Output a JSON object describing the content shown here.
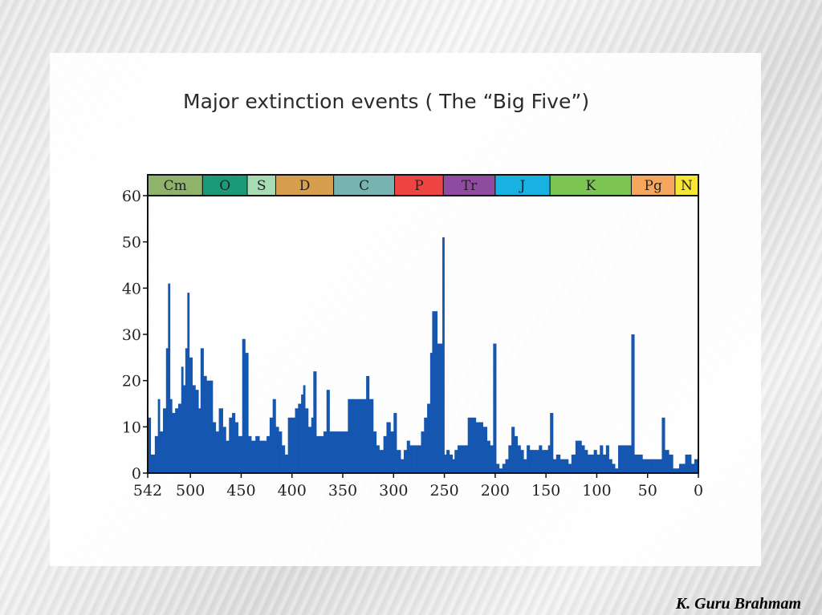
{
  "slide": {
    "title": "Major extinction events ( The “Big Five”)",
    "credit": "K. Guru Brahmam"
  },
  "colors": {
    "bar": "#1556b0",
    "axis": "#111111"
  },
  "chart_data": {
    "type": "bar",
    "title": "Major extinction events ( The “Big Five”)",
    "xlabel": "",
    "ylabel": "",
    "xlim": [
      542,
      0
    ],
    "ylim": [
      0,
      60
    ],
    "x_ticks": [
      {
        "value": 542,
        "label": "542"
      },
      {
        "value": 500,
        "label": "500"
      },
      {
        "value": 450,
        "label": "450"
      },
      {
        "value": 400,
        "label": "400"
      },
      {
        "value": 350,
        "label": "350"
      },
      {
        "value": 300,
        "label": "300"
      },
      {
        "value": 250,
        "label": "250"
      },
      {
        "value": 200,
        "label": "200"
      },
      {
        "value": 150,
        "label": "150"
      },
      {
        "value": 100,
        "label": "100"
      },
      {
        "value": 50,
        "label": "50"
      },
      {
        "value": 0,
        "label": "0"
      }
    ],
    "y_ticks": [
      {
        "value": 0,
        "label": "0"
      },
      {
        "value": 10,
        "label": "10"
      },
      {
        "value": 20,
        "label": "20"
      },
      {
        "value": 30,
        "label": "30"
      },
      {
        "value": 40,
        "label": "40"
      },
      {
        "value": 50,
        "label": "50"
      },
      {
        "value": 60,
        "label": "60"
      }
    ],
    "periods": [
      {
        "label": "Cm",
        "start": 542,
        "end": 488,
        "color": "#8fb36a"
      },
      {
        "label": "O",
        "start": 488,
        "end": 444,
        "color": "#1a9a78"
      },
      {
        "label": "S",
        "start": 444,
        "end": 416,
        "color": "#a8dcb4"
      },
      {
        "label": "D",
        "start": 416,
        "end": 359,
        "color": "#d79e4f"
      },
      {
        "label": "C",
        "start": 359,
        "end": 299,
        "color": "#77b3b0"
      },
      {
        "label": "P",
        "start": 299,
        "end": 251,
        "color": "#ef4444"
      },
      {
        "label": "Tr",
        "start": 251,
        "end": 200,
        "color": "#8e4ba0"
      },
      {
        "label": "J",
        "start": 200,
        "end": 146,
        "color": "#19b0e2"
      },
      {
        "label": "K",
        "start": 146,
        "end": 66,
        "color": "#7cc553"
      },
      {
        "label": "Pg",
        "start": 66,
        "end": 23,
        "color": "#f6a75d"
      },
      {
        "label": "N",
        "start": 23,
        "end": 0,
        "color": "#f7e733"
      }
    ],
    "series": [
      {
        "values": [
          [
            542,
            12
          ],
          [
            539,
            4
          ],
          [
            535,
            8
          ],
          [
            532,
            16
          ],
          [
            530,
            9
          ],
          [
            527,
            14
          ],
          [
            524,
            27
          ],
          [
            522,
            41
          ],
          [
            520,
            16
          ],
          [
            518,
            13
          ],
          [
            515,
            14
          ],
          [
            512,
            15
          ],
          [
            509,
            23
          ],
          [
            507,
            19
          ],
          [
            505,
            27
          ],
          [
            503,
            39
          ],
          [
            501,
            25
          ],
          [
            498,
            19
          ],
          [
            495,
            18
          ],
          [
            492,
            14
          ],
          [
            490,
            27
          ],
          [
            487,
            21
          ],
          [
            484,
            20
          ],
          [
            481,
            20
          ],
          [
            478,
            11
          ],
          [
            475,
            9
          ],
          [
            472,
            14
          ],
          [
            468,
            10
          ],
          [
            465,
            7
          ],
          [
            462,
            12
          ],
          [
            459,
            13
          ],
          [
            456,
            11
          ],
          [
            453,
            8
          ],
          [
            449,
            29
          ],
          [
            446,
            26
          ],
          [
            443,
            8
          ],
          [
            440,
            7
          ],
          [
            436,
            8
          ],
          [
            432,
            7
          ],
          [
            428,
            7
          ],
          [
            425,
            8
          ],
          [
            422,
            12
          ],
          [
            419,
            16
          ],
          [
            416,
            10
          ],
          [
            413,
            9
          ],
          [
            410,
            6
          ],
          [
            407,
            4
          ],
          [
            404,
            12
          ],
          [
            400,
            12
          ],
          [
            397,
            14
          ],
          [
            394,
            15
          ],
          [
            391,
            17
          ],
          [
            389,
            19
          ],
          [
            387,
            14
          ],
          [
            384,
            10
          ],
          [
            381,
            12
          ],
          [
            379,
            22
          ],
          [
            376,
            8
          ],
          [
            372,
            8
          ],
          [
            369,
            9
          ],
          [
            366,
            18
          ],
          [
            363,
            9
          ],
          [
            358,
            9
          ],
          [
            354,
            9
          ],
          [
            349,
            9
          ],
          [
            345,
            16
          ],
          [
            340,
            16
          ],
          [
            336,
            16
          ],
          [
            331,
            16
          ],
          [
            327,
            21
          ],
          [
            324,
            16
          ],
          [
            320,
            9
          ],
          [
            317,
            6
          ],
          [
            314,
            5
          ],
          [
            310,
            8
          ],
          [
            307,
            11
          ],
          [
            303,
            9
          ],
          [
            300,
            13
          ],
          [
            297,
            5
          ],
          [
            293,
            3
          ],
          [
            290,
            5
          ],
          [
            287,
            7
          ],
          [
            284,
            6
          ],
          [
            280,
            6
          ],
          [
            276,
            6
          ],
          [
            273,
            9
          ],
          [
            270,
            12
          ],
          [
            267,
            15
          ],
          [
            264,
            26
          ],
          [
            262,
            35
          ],
          [
            259,
            35
          ],
          [
            257,
            28
          ],
          [
            254,
            28
          ],
          [
            252,
            51
          ],
          [
            250,
            4
          ],
          [
            248,
            5
          ],
          [
            245,
            4
          ],
          [
            242,
            3
          ],
          [
            240,
            5
          ],
          [
            237,
            6
          ],
          [
            234,
            6
          ],
          [
            230,
            6
          ],
          [
            227,
            12
          ],
          [
            223,
            12
          ],
          [
            219,
            11
          ],
          [
            215,
            11
          ],
          [
            212,
            10
          ],
          [
            208,
            7
          ],
          [
            205,
            6
          ],
          [
            202,
            28
          ],
          [
            199,
            2
          ],
          [
            196,
            1
          ],
          [
            193,
            2
          ],
          [
            190,
            3
          ],
          [
            187,
            6
          ],
          [
            184,
            10
          ],
          [
            181,
            8
          ],
          [
            178,
            6
          ],
          [
            175,
            5
          ],
          [
            172,
            3
          ],
          [
            169,
            6
          ],
          [
            166,
            5
          ],
          [
            163,
            5
          ],
          [
            160,
            5
          ],
          [
            157,
            6
          ],
          [
            154,
            5
          ],
          [
            151,
            5
          ],
          [
            148,
            6
          ],
          [
            146,
            13
          ],
          [
            143,
            3
          ],
          [
            140,
            4
          ],
          [
            136,
            3
          ],
          [
            132,
            3
          ],
          [
            128,
            2
          ],
          [
            125,
            4
          ],
          [
            121,
            7
          ],
          [
            118,
            7
          ],
          [
            115,
            6
          ],
          [
            112,
            5
          ],
          [
            109,
            4
          ],
          [
            106,
            4
          ],
          [
            103,
            5
          ],
          [
            100,
            4
          ],
          [
            97,
            6
          ],
          [
            94,
            4
          ],
          [
            91,
            6
          ],
          [
            88,
            3
          ],
          [
            85,
            2
          ],
          [
            82,
            1
          ],
          [
            79,
            6
          ],
          [
            75,
            6
          ],
          [
            71,
            6
          ],
          [
            68,
            6
          ],
          [
            66,
            30
          ],
          [
            63,
            4
          ],
          [
            59,
            4
          ],
          [
            55,
            3
          ],
          [
            51,
            3
          ],
          [
            47,
            3
          ],
          [
            43,
            3
          ],
          [
            39,
            3
          ],
          [
            36,
            12
          ],
          [
            33,
            5
          ],
          [
            29,
            4
          ],
          [
            25,
            1
          ],
          [
            22,
            1
          ],
          [
            19,
            2
          ],
          [
            16,
            2
          ],
          [
            13,
            4
          ],
          [
            10,
            4
          ],
          [
            7,
            2
          ],
          [
            4,
            3
          ],
          [
            2,
            3
          ]
        ]
      }
    ]
  }
}
